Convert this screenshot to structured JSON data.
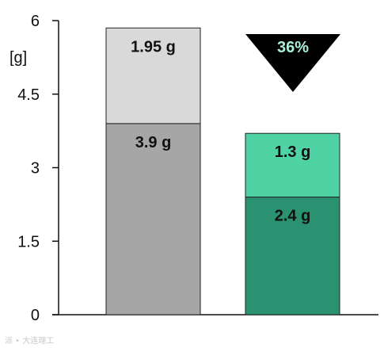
{
  "chart_data": {
    "type": "bar",
    "stacked": true,
    "unit_label": "[g]",
    "ylim": [
      0,
      6
    ],
    "yticks": [
      0,
      1.5,
      3,
      4.5,
      6
    ],
    "ytick_labels": [
      "0",
      "1.5",
      "3",
      "4.5",
      "6"
    ],
    "grid": false,
    "bars": [
      {
        "segments": [
          {
            "value": 3.9,
            "label": "3.9 g",
            "color": "#a6a6a6"
          },
          {
            "value": 1.95,
            "label": "1.95 g",
            "color": "#d9d9d9"
          }
        ]
      },
      {
        "segments": [
          {
            "value": 2.4,
            "label": "2.4 g",
            "color": "#2a9270"
          },
          {
            "value": 1.3,
            "label": "1.3 g",
            "color": "#4fd3a5"
          }
        ]
      }
    ],
    "annotation": {
      "text": "36%",
      "shape": "down-triangle",
      "color": "#000000",
      "text_color": "#a8f0d6"
    }
  },
  "watermark": "派 • 大连理工"
}
